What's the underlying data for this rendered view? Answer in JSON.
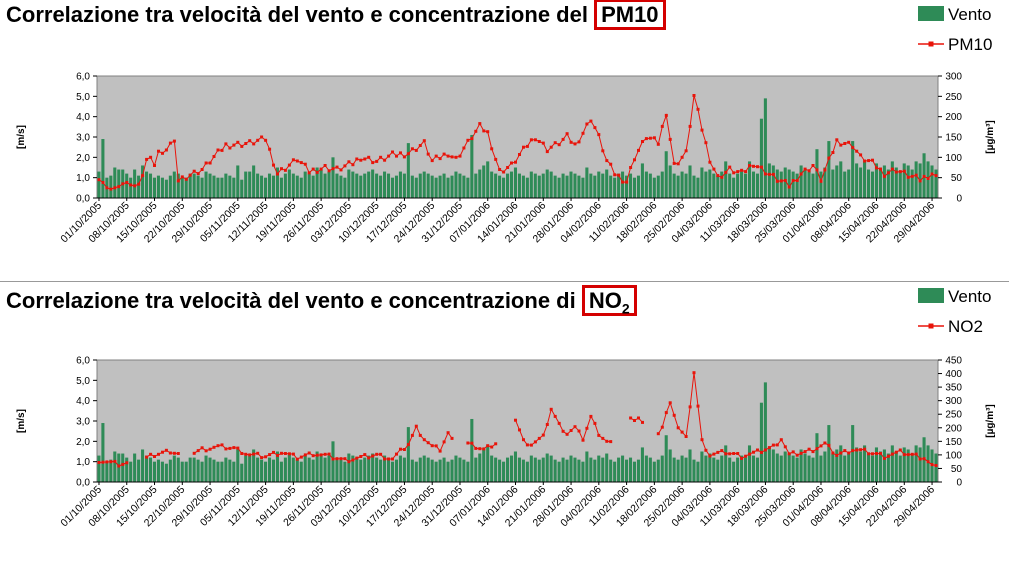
{
  "chart_data": [
    {
      "type": "bar+line",
      "title_prefix": "Correlazione tra velocità del vento e concentrazione del ",
      "title_highlight": "PM10",
      "ylabel_left": "[m/s]",
      "ylabel_right": "[µg/m³]",
      "left_ticks": [
        "0,0",
        "1,0",
        "2,0",
        "3,0",
        "4,0",
        "5,0",
        "6,0"
      ],
      "right_ticks": [
        "0",
        "50",
        "100",
        "150",
        "200",
        "250",
        "300"
      ],
      "ylim_left": [
        0,
        6
      ],
      "ylim_right": [
        0,
        300
      ],
      "x_start": "2005-10-01",
      "x_end": "2006-04-30",
      "x_ticks": [
        "01/10/2005",
        "08/10/2005",
        "15/10/2005",
        "22/10/2005",
        "29/10/2005",
        "05/11/2005",
        "12/11/2005",
        "19/11/2005",
        "26/11/2005",
        "03/12/2005",
        "10/12/2005",
        "17/12/2005",
        "24/12/2005",
        "31/12/2005",
        "07/01/2006",
        "14/01/2006",
        "21/01/2006",
        "28/01/2006",
        "04/02/2006",
        "11/02/2006",
        "18/02/2006",
        "25/02/2006",
        "04/03/2006",
        "11/03/2006",
        "18/03/2006",
        "25/03/2006",
        "01/04/2006",
        "08/04/2006",
        "15/04/2006",
        "22/04/2006",
        "29/04/2006"
      ],
      "series": [
        {
          "name": "Vento",
          "type": "bar",
          "color": "#2e8b57",
          "values": [
            1.3,
            2.9,
            1.0,
            1.1,
            1.5,
            1.4,
            1.4,
            1.2,
            1.0,
            1.4,
            1.1,
            1.6,
            1.3,
            1.2,
            1.0,
            1.1,
            1.0,
            0.9,
            1.1,
            1.3,
            1.2,
            1.0,
            1.0,
            1.2,
            1.2,
            1.1,
            1.0,
            1.3,
            1.2,
            1.1,
            1.0,
            1.0,
            1.2,
            1.1,
            1.0,
            1.6,
            0.9,
            1.3,
            1.3,
            1.6,
            1.2,
            1.1,
            1.0,
            1.2,
            1.1,
            1.5,
            1.0,
            1.2,
            1.4,
            1.2,
            1.1,
            1.0,
            1.3,
            1.2,
            1.1,
            1.5,
            1.4,
            1.2,
            1.3,
            2.0,
            1.2,
            1.1,
            1.0,
            1.4,
            1.3,
            1.2,
            1.1,
            1.2,
            1.3,
            1.4,
            1.2,
            1.1,
            1.3,
            1.2,
            1.0,
            1.1,
            1.3,
            1.2,
            2.7,
            1.1,
            1.0,
            1.2,
            1.3,
            1.2,
            1.1,
            1.0,
            1.1,
            1.2,
            1.0,
            1.1,
            1.3,
            1.2,
            1.1,
            1.0,
            3.1,
            1.2,
            1.4,
            1.6,
            1.8,
            1.3,
            1.2,
            1.1,
            1.0,
            1.2,
            1.3,
            1.5,
            1.2,
            1.1,
            1.0,
            1.3,
            1.2,
            1.1,
            1.2,
            1.4,
            1.3,
            1.1,
            1.0,
            1.2,
            1.1,
            1.3,
            1.2,
            1.1,
            1.0,
            1.5,
            1.2,
            1.1,
            1.3,
            1.2,
            1.4,
            1.1,
            1.0,
            1.2,
            1.3,
            1.1,
            1.2,
            1.0,
            1.1,
            1.7,
            1.3,
            1.2,
            1.0,
            1.1,
            1.3,
            2.3,
            1.6,
            1.2,
            1.1,
            1.3,
            1.2,
            1.6,
            1.1,
            1.0,
            1.5,
            1.3,
            1.4,
            1.2,
            1.1,
            1.3,
            1.8,
            1.2,
            1.0,
            1.2,
            1.3,
            1.2,
            1.8,
            1.3,
            1.2,
            3.9,
            4.9,
            1.7,
            1.6,
            1.4,
            1.3,
            1.5,
            1.4,
            1.3,
            1.2,
            1.6,
            1.4,
            1.3,
            1.2,
            2.4,
            1.3,
            1.5,
            2.8,
            1.4,
            1.6,
            1.8,
            1.3,
            1.4,
            2.8,
            1.7,
            1.5,
            1.8,
            1.4,
            1.3,
            1.7,
            1.5,
            1.6,
            1.4,
            1.8,
            1.5,
            1.3,
            1.7,
            1.6,
            1.4,
            1.8,
            1.7,
            2.2,
            1.8,
            1.6,
            1.4
          ]
        },
        {
          "name": "PM10",
          "type": "line",
          "color": "#e8140a",
          "values": [
            45,
            38,
            25,
            22,
            25,
            28,
            35,
            38,
            32,
            30,
            34,
            55,
            95,
            100,
            80,
            115,
            110,
            118,
            135,
            140,
            null,
            null,
            null,
            null,
            null,
            null,
            null,
            null,
            null,
            null,
            null,
            null,
            null,
            null,
            null,
            null,
            null,
            null,
            null,
            null,
            null,
            null,
            null,
            null,
            null,
            null,
            null,
            null,
            null,
            null,
            null,
            null,
            null,
            null,
            null,
            null,
            null,
            null,
            null,
            null,
            null,
            null,
            null,
            null,
            null,
            null,
            null,
            null,
            null,
            null,
            null,
            null,
            null,
            null,
            null,
            null,
            null,
            null,
            null,
            null,
            null,
            null,
            null,
            null,
            null,
            null,
            null,
            null,
            null,
            null,
            null,
            null,
            null,
            null,
            null,
            null,
            null,
            null,
            null,
            null,
            null,
            null,
            null,
            null,
            null,
            null,
            null,
            null,
            null,
            null,
            null,
            null,
            null,
            null,
            null,
            null,
            null,
            null,
            null,
            null,
            null,
            null,
            null,
            null,
            null,
            null,
            null,
            null,
            null,
            null,
            null,
            null,
            null,
            null,
            null,
            null,
            null,
            null,
            null,
            null,
            null,
            null,
            null,
            null,
            null,
            null,
            null,
            null,
            null,
            null,
            null,
            null,
            null,
            null,
            null,
            null,
            null,
            null,
            null,
            null,
            null,
            null,
            null,
            null,
            null,
            null,
            null,
            null,
            null,
            null,
            null,
            null,
            null,
            null,
            null,
            null,
            null,
            null,
            null,
            null,
            null,
            null,
            null,
            null,
            null,
            null,
            null,
            null,
            null,
            null,
            null,
            null,
            null,
            null,
            null,
            null,
            null,
            null,
            null,
            null,
            null,
            null,
            null,
            null,
            null,
            null,
            null,
            null,
            null,
            null,
            null,
            null,
            null
          ]
        }
      ]
    },
    {
      "type": "bar+line",
      "title_prefix": "Correlazione tra velocità del vento e concentrazione di ",
      "title_highlight": "NO",
      "title_highlight_sub": "2",
      "ylabel_left": "[m/s]",
      "ylabel_right": "[µg/m³]",
      "left_ticks": [
        "0,0",
        "1,0",
        "2,0",
        "3,0",
        "4,0",
        "5,0",
        "6,0"
      ],
      "right_ticks": [
        "0",
        "50",
        "100",
        "150",
        "200",
        "250",
        "300",
        "350",
        "400",
        "450"
      ],
      "ylim_left": [
        0,
        6
      ],
      "ylim_right": [
        0,
        450
      ],
      "x_start": "2005-10-01",
      "x_end": "2006-04-30",
      "series": [
        {
          "name": "Vento",
          "type": "bar",
          "color": "#2e8b57"
        },
        {
          "name": "NO2",
          "type": "line",
          "color": "#e8140a"
        }
      ]
    }
  ],
  "legend_pm10": {
    "bar": "Vento",
    "line": "PM10"
  },
  "legend_no2": {
    "bar": "Vento",
    "line": "NO2"
  }
}
